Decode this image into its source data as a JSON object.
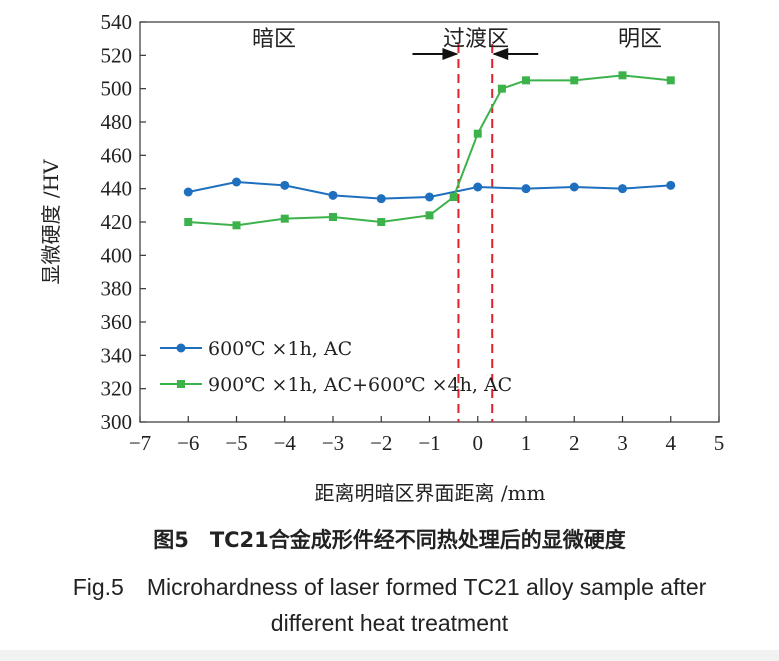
{
  "chart_data": {
    "type": "line",
    "xlabel": "距离明暗区界面距离 /mm",
    "ylabel": "显微硬度 /HV",
    "xlim": [
      -7,
      5
    ],
    "ylim": [
      300,
      540
    ],
    "x_ticks": [
      -7,
      -6,
      -5,
      -4,
      -3,
      -2,
      -1,
      0,
      1,
      2,
      3,
      4,
      5
    ],
    "y_ticks": [
      300,
      320,
      340,
      360,
      380,
      400,
      420,
      440,
      460,
      480,
      500,
      520,
      540
    ],
    "grid": false,
    "legend_position": "bottom-left",
    "series": [
      {
        "name": "600℃ ×1h, AC",
        "color": "#1f6fbf",
        "marker": "circle",
        "points": [
          [
            -6,
            438
          ],
          [
            -5,
            444
          ],
          [
            -4,
            442
          ],
          [
            -3,
            436
          ],
          [
            -2,
            434
          ],
          [
            -1,
            435
          ],
          [
            0,
            441
          ],
          [
            1,
            440
          ],
          [
            2,
            441
          ],
          [
            3,
            440
          ],
          [
            4,
            442
          ]
        ]
      },
      {
        "name": "900℃ ×1h, AC+600℃ ×4h, AC",
        "color": "#3cb34a",
        "marker": "square",
        "points": [
          [
            -6,
            420
          ],
          [
            -5,
            418
          ],
          [
            -4,
            422
          ],
          [
            -3,
            423
          ],
          [
            -2,
            420
          ],
          [
            -1,
            424
          ],
          [
            -0.5,
            435
          ],
          [
            0,
            473
          ],
          [
            0.5,
            500
          ],
          [
            1,
            505
          ],
          [
            2,
            505
          ],
          [
            3,
            508
          ],
          [
            4,
            505
          ]
        ]
      }
    ],
    "annotations": {
      "regions": [
        "暗区",
        "过渡区",
        "明区"
      ],
      "dashed_lines_x": [
        -0.4,
        0.3
      ],
      "dashed_line_color": "#e0202a"
    }
  },
  "caption": {
    "cn": "图5　TC21合金成形件经不同热处理后的显微硬度",
    "en_line1": "Fig.5　Microhardness of laser formed TC21 alloy sample after",
    "en_line2": "different heat treatment"
  }
}
